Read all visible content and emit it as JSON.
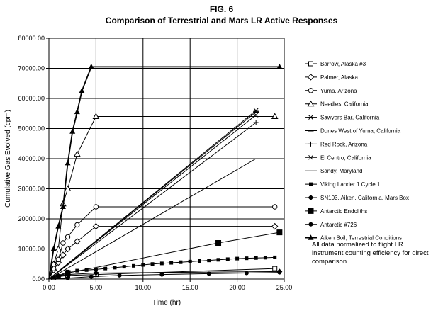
{
  "figure": {
    "title": "FIG. 6",
    "subtitle": "Comparison of Terrestrial and Mars LR Active Responses",
    "note": "All data normalized to flight LR instrument counting efficiency for direct comparison"
  },
  "chart_data": {
    "type": "line",
    "title": "FIG. 6",
    "subtitle": "Comparison of Terrestrial and Mars LR Active Responses",
    "xlabel": "Time (hr)",
    "ylabel": "Cumulative Gas Evolved (cpm)",
    "xlim": [
      0,
      25
    ],
    "ylim": [
      0,
      80000
    ],
    "xticks": [
      "0.00",
      "5.00",
      "10.00",
      "15.00",
      "20.00",
      "25.00"
    ],
    "yticks": [
      "0.00",
      "10000.00",
      "20000.00",
      "30000.00",
      "40000.00",
      "50000.00",
      "60000.00",
      "70000.00",
      "80000.00"
    ],
    "grid": "horizontal and vertical major",
    "legend_position": "right",
    "series": [
      {
        "name": "Barrow, Alaska #3",
        "marker": "square-open",
        "x": [
          0,
          0.5,
          1,
          2,
          5,
          24
        ],
        "y": [
          0,
          400,
          800,
          1200,
          1500,
          3500
        ]
      },
      {
        "name": "Palmer, Alaska",
        "marker": "diamond-open",
        "x": [
          0,
          0.5,
          1,
          1.5,
          2,
          3,
          5,
          24
        ],
        "y": [
          0,
          3000,
          5500,
          8000,
          10000,
          12500,
          17500,
          17500
        ]
      },
      {
        "name": "Yuma, Arizona",
        "marker": "circle-open",
        "x": [
          0,
          0.5,
          1,
          1.5,
          2,
          3,
          5,
          24
        ],
        "y": [
          0,
          3500,
          6500,
          12000,
          14000,
          18000,
          24000,
          24000
        ]
      },
      {
        "name": "Needles, California",
        "marker": "triangle-open",
        "x": [
          0,
          0.5,
          1,
          1.5,
          2,
          3,
          5,
          24
        ],
        "y": [
          0,
          5000,
          10000,
          25000,
          30000,
          41500,
          54000,
          54000
        ]
      },
      {
        "name": "Sawyers Bar, California",
        "marker": "star",
        "x": [
          0,
          22
        ],
        "y": [
          0,
          56000
        ]
      },
      {
        "name": "Dunes West of Yuma, California",
        "marker": "dash",
        "x": [
          0,
          22
        ],
        "y": [
          0,
          55500
        ]
      },
      {
        "name": "Red Rock, Arizona",
        "marker": "plus",
        "x": [
          0,
          22
        ],
        "y": [
          0,
          52000
        ]
      },
      {
        "name": "El Centro, California",
        "marker": "x",
        "x": [
          0,
          22
        ],
        "y": [
          0,
          54500
        ]
      },
      {
        "name": "Sandy, Maryland",
        "marker": "none",
        "x": [
          0,
          22
        ],
        "y": [
          0,
          40000
        ]
      },
      {
        "name": "Viking Lander 1 Cycle 1",
        "marker": "square-small",
        "x": [
          0,
          0.5,
          1,
          2,
          3,
          4,
          5,
          6,
          7,
          8,
          9,
          10,
          11,
          12,
          13,
          14,
          15,
          16,
          17,
          18,
          19,
          20,
          21,
          22,
          23,
          24
        ],
        "y": [
          0,
          500,
          1000,
          2500,
          2800,
          3000,
          3200,
          3500,
          3800,
          4100,
          4400,
          4700,
          5000,
          5200,
          5400,
          5600,
          5800,
          6000,
          6200,
          6400,
          6600,
          6800,
          6900,
          7000,
          7100,
          7200
        ]
      },
      {
        "name": "SN103, Aiken, California, Mars Box",
        "marker": "diamond-filled",
        "x": [
          0,
          1,
          2,
          5,
          24.5
        ],
        "y": [
          0,
          1000,
          1500,
          2000,
          2500
        ]
      },
      {
        "name": "Antarctic Endoliths",
        "marker": "square-filled",
        "x": [
          0,
          2,
          18,
          24.5
        ],
        "y": [
          0,
          2000,
          12000,
          15500
        ]
      },
      {
        "name": "Antarctic #726",
        "marker": "circle-filled",
        "x": [
          0,
          2,
          4.5,
          7.5,
          12,
          17,
          21,
          24.5
        ],
        "y": [
          0,
          300,
          800,
          1200,
          1500,
          1800,
          2000,
          2200
        ]
      },
      {
        "name": "Aiken Soil, Terrestrial Conditions",
        "marker": "triangle-filled",
        "x": [
          0,
          0.5,
          1,
          1.5,
          2,
          2.5,
          3,
          3.5,
          4.5,
          24.5
        ],
        "y": [
          0,
          10000,
          17500,
          24000,
          38500,
          49000,
          55500,
          62500,
          70500,
          70500
        ]
      }
    ]
  }
}
